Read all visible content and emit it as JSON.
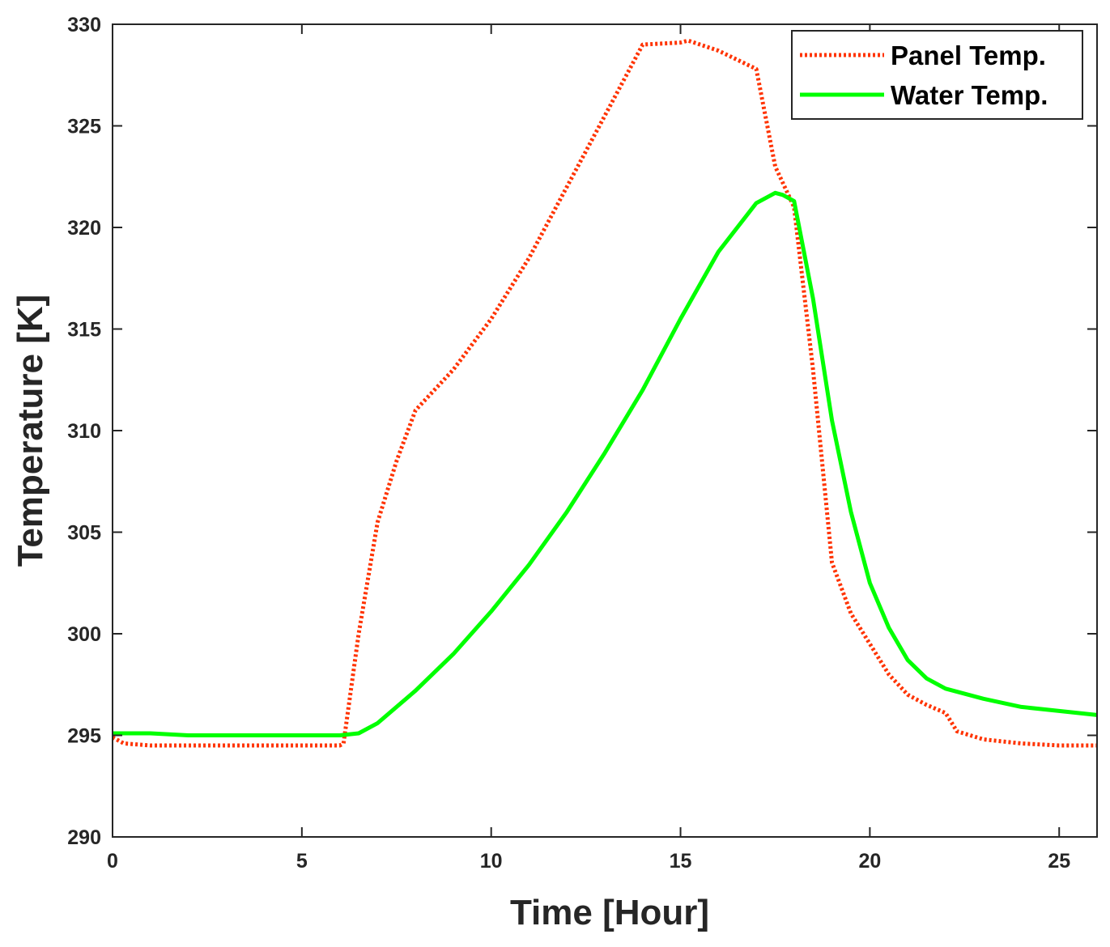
{
  "chart_data": {
    "type": "line",
    "xlabel": "Time [Hour]",
    "ylabel": "Temperature [K]",
    "xlim": [
      0,
      26
    ],
    "ylim": [
      290,
      330
    ],
    "xticks": [
      0,
      5,
      10,
      15,
      20,
      25
    ],
    "yticks": [
      290,
      295,
      300,
      305,
      310,
      315,
      320,
      325,
      330
    ],
    "grid": false,
    "legend": "top-right",
    "series": [
      {
        "name": "Panel Temp.",
        "color": "#ff3300",
        "style": "dotted",
        "x": [
          0,
          0.3,
          1,
          2,
          3,
          4,
          5,
          6,
          6.1,
          6.5,
          7,
          7.5,
          8,
          9,
          10,
          11,
          12,
          13,
          14,
          15,
          15.2,
          16,
          17,
          17.5,
          18,
          18.5,
          19,
          19.5,
          20,
          20.5,
          21,
          21.5,
          22,
          22.3,
          23,
          24,
          25,
          26
        ],
        "values": [
          294.9,
          294.6,
          294.5,
          294.5,
          294.5,
          294.5,
          294.5,
          294.5,
          294.6,
          300,
          305.5,
          308.5,
          311,
          313,
          315.5,
          318.5,
          322,
          325.5,
          329,
          329.1,
          329.2,
          328.7,
          327.8,
          323,
          321,
          313,
          303.5,
          301,
          299.5,
          298,
          297,
          296.5,
          296.1,
          295.2,
          294.8,
          294.6,
          294.5,
          294.5
        ]
      },
      {
        "name": "Water Temp.",
        "color": "#00ff00",
        "style": "solid",
        "x": [
          0,
          1,
          2,
          3,
          4,
          5,
          6,
          6.5,
          7,
          8,
          9,
          10,
          11,
          12,
          13,
          14,
          15,
          16,
          17,
          17.5,
          17.7,
          18,
          18.5,
          19,
          19.5,
          20,
          20.5,
          21,
          21.5,
          22,
          23,
          24,
          25,
          26
        ],
        "values": [
          295.1,
          295.1,
          295,
          295,
          295,
          295,
          295,
          295.1,
          295.6,
          297.2,
          299,
          301.1,
          303.4,
          306,
          308.9,
          312,
          315.5,
          318.8,
          321.2,
          321.7,
          321.6,
          321.3,
          316.5,
          310.5,
          306,
          302.5,
          300.3,
          298.7,
          297.8,
          297.3,
          296.8,
          296.4,
          296.2,
          296
        ]
      }
    ]
  }
}
